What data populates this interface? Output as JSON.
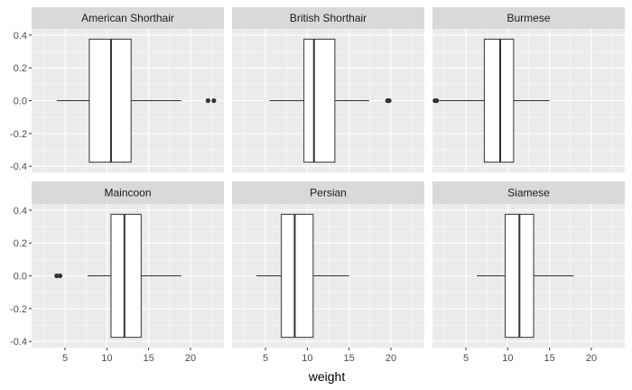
{
  "chart_data": {
    "type": "boxplot",
    "facet_by": "breed",
    "xlabel": "weight",
    "ylabel": "",
    "xlim": [
      1,
      24
    ],
    "ylim": [
      -0.4,
      0.4
    ],
    "x_ticks": [
      5,
      10,
      15,
      20
    ],
    "y_ticks": [
      -0.4,
      -0.2,
      0.0,
      0.2,
      0.4
    ],
    "x_tick_labels": [
      "5",
      "10",
      "15",
      "20"
    ],
    "y_tick_labels": [
      "-0.4",
      "-0.2",
      "0.0",
      "0.2",
      "0.4"
    ],
    "box_half_height": 0.375,
    "grid": true,
    "colors": {
      "panel_bg": "#ebebeb",
      "grid_major": "#ffffff",
      "strip_bg": "#d9d9d9",
      "box_fill": "#ffffff",
      "box_line": "#333333",
      "outlier": "#333333"
    },
    "panels": [
      {
        "name": "American Shorthair",
        "whisker_low": 4.0,
        "q1": 7.9,
        "median": 10.5,
        "q3": 12.9,
        "whisker_high": 18.9,
        "outliers": [
          22.1,
          22.8
        ]
      },
      {
        "name": "British Shorthair",
        "whisker_low": 5.5,
        "q1": 9.6,
        "median": 10.8,
        "q3": 13.3,
        "whisker_high": 17.4,
        "outliers": [
          19.6,
          19.8
        ]
      },
      {
        "name": "Burmese",
        "whisker_low": 1.8,
        "q1": 7.2,
        "median": 9.1,
        "q3": 10.7,
        "whisker_high": 15.0,
        "outliers": [
          1.3,
          1.5
        ]
      },
      {
        "name": "Maincoon",
        "whisker_low": 7.7,
        "q1": 10.5,
        "median": 12.1,
        "q3": 14.1,
        "whisker_high": 18.9,
        "outliers": [
          4.0,
          4.4
        ]
      },
      {
        "name": "Persian",
        "whisker_low": 3.9,
        "q1": 6.9,
        "median": 8.5,
        "q3": 10.7,
        "whisker_high": 15.0,
        "outliers": []
      },
      {
        "name": "Siamese",
        "whisker_low": 6.3,
        "q1": 9.7,
        "median": 11.4,
        "q3": 13.1,
        "whisker_high": 17.9,
        "outliers": []
      }
    ]
  }
}
